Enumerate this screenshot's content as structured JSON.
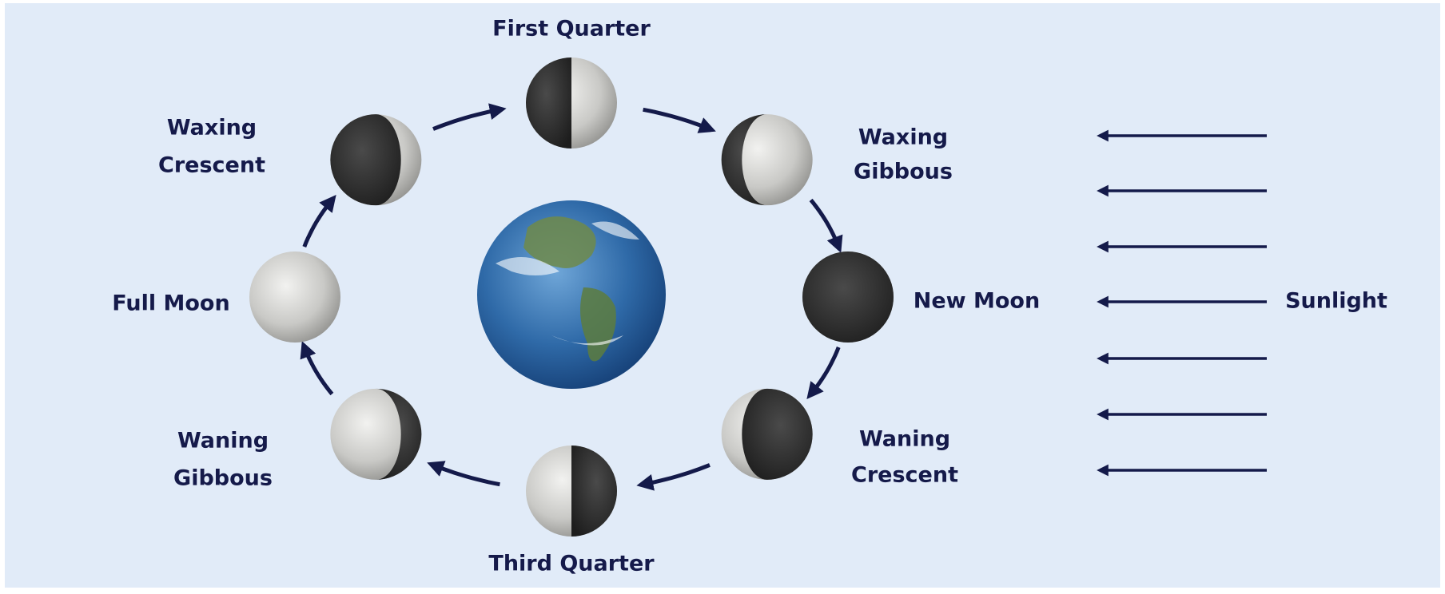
{
  "title_nodes": [
    {
      "label": [
        "First Quarter"
      ]
    },
    {
      "label": [
        "Waxing",
        "Gibbous"
      ]
    },
    {
      "label": [
        "New Moon"
      ]
    },
    {
      "label": [
        "Waning",
        "Crescent"
      ]
    },
    {
      "label": [
        "Third Quarter"
      ]
    },
    {
      "label": [
        "Waning",
        "Gibbous"
      ]
    },
    {
      "label": [
        "Full Moon"
      ]
    },
    {
      "label": [
        "Waxing",
        "Crescent"
      ]
    }
  ],
  "sunlight": "Sunlight"
}
